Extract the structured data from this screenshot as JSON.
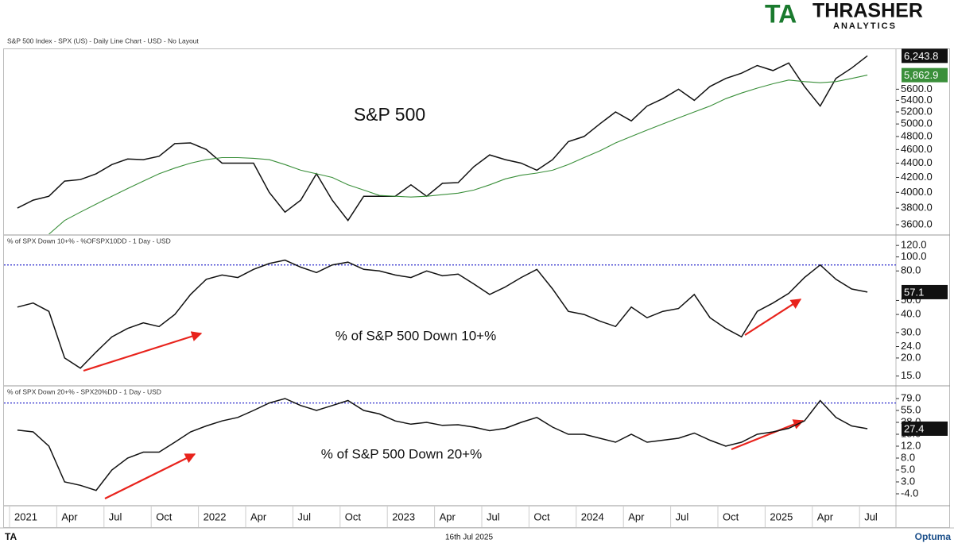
{
  "logo": {
    "mark": "TA",
    "name": "THRASHER",
    "sub": "ANALYTICS"
  },
  "footer": {
    "left": "TA",
    "date": "16th Jul 2025",
    "brand": "Optuma"
  },
  "chart_data": [
    {
      "type": "line",
      "title": "S&P 500 Index - SPX (US) - Daily Line Chart - USD - No Layout",
      "annotation": "S&P 500",
      "x": [
        "2021-01",
        "2021-02",
        "2021-03",
        "2021-04",
        "2021-05",
        "2021-06",
        "2021-07",
        "2021-08",
        "2021-09",
        "2021-10",
        "2021-11",
        "2021-12",
        "2022-01",
        "2022-02",
        "2022-03",
        "2022-04",
        "2022-05",
        "2022-06",
        "2022-07",
        "2022-08",
        "2022-09",
        "2022-10",
        "2022-11",
        "2022-12",
        "2023-01",
        "2023-02",
        "2023-03",
        "2023-04",
        "2023-05",
        "2023-06",
        "2023-07",
        "2023-08",
        "2023-09",
        "2023-10",
        "2023-11",
        "2023-12",
        "2024-01",
        "2024-02",
        "2024-03",
        "2024-04",
        "2024-05",
        "2024-06",
        "2024-07",
        "2024-08",
        "2024-09",
        "2024-10",
        "2024-11",
        "2024-12",
        "2025-01",
        "2025-02",
        "2025-03",
        "2025-04",
        "2025-05",
        "2025-06",
        "2025-07"
      ],
      "yscale": "log",
      "ylim": [
        3490,
        6380
      ],
      "yticks": [
        {
          "value": 3600,
          "label": "3600.0"
        },
        {
          "value": 3800,
          "label": "3800.0"
        },
        {
          "value": 4000,
          "label": "4000.0"
        },
        {
          "value": 4200,
          "label": "4200.0"
        },
        {
          "value": 4400,
          "label": "4400.0"
        },
        {
          "value": 4600,
          "label": "4600.0"
        },
        {
          "value": 4800,
          "label": "4800.0"
        },
        {
          "value": 5000,
          "label": "5000.0"
        },
        {
          "value": 5200,
          "label": "5200.0"
        },
        {
          "value": 5400,
          "label": "5400.0"
        },
        {
          "value": 5600,
          "label": "5600.0"
        }
      ],
      "series": [
        {
          "color": "#111111",
          "last_value_label": "6,243.8",
          "values": [
            3800,
            3900,
            3950,
            4150,
            4170,
            4250,
            4380,
            4460,
            4450,
            4500,
            4690,
            4700,
            4600,
            4400,
            4400,
            4400,
            4000,
            3750,
            3900,
            4250,
            3900,
            3650,
            3950,
            3950,
            3950,
            4100,
            3950,
            4120,
            4130,
            4350,
            4520,
            4450,
            4400,
            4300,
            4450,
            4720,
            4800,
            5000,
            5200,
            5050,
            5300,
            5430,
            5600,
            5400,
            5650,
            5800,
            5900,
            6050,
            5950,
            6100,
            5650,
            5300,
            5800,
            6000,
            6243.8
          ]
        },
        {
          "color": "#3a8f3a",
          "last_value_label": "5,862.9",
          "values": [
            null,
            null,
            3490,
            3650,
            3750,
            3850,
            3950,
            4050,
            4150,
            4250,
            4330,
            4400,
            4450,
            4480,
            4480,
            4470,
            4450,
            4380,
            4300,
            4250,
            4200,
            4100,
            4030,
            3960,
            3950,
            3940,
            3950,
            3970,
            3990,
            4030,
            4100,
            4180,
            4230,
            4260,
            4300,
            4380,
            4480,
            4580,
            4700,
            4800,
            4900,
            5000,
            5100,
            5200,
            5300,
            5430,
            5530,
            5620,
            5700,
            5770,
            5740,
            5720,
            5740,
            5800,
            5862.9
          ]
        }
      ]
    },
    {
      "type": "line",
      "title": "% of SPX Down 10+% - %OFSPX10DD - 1 Day - USD",
      "annotation": "% of S&P 500 Down 10+%",
      "x": [
        "2021-01",
        "2021-02",
        "2021-03",
        "2021-04",
        "2021-05",
        "2021-06",
        "2021-07",
        "2021-08",
        "2021-09",
        "2021-10",
        "2021-11",
        "2021-12",
        "2022-01",
        "2022-02",
        "2022-03",
        "2022-04",
        "2022-05",
        "2022-06",
        "2022-07",
        "2022-08",
        "2022-09",
        "2022-10",
        "2022-11",
        "2022-12",
        "2023-01",
        "2023-02",
        "2023-03",
        "2023-04",
        "2023-05",
        "2023-06",
        "2023-07",
        "2023-08",
        "2023-09",
        "2023-10",
        "2023-11",
        "2023-12",
        "2024-01",
        "2024-02",
        "2024-03",
        "2024-04",
        "2024-05",
        "2024-06",
        "2024-07",
        "2024-08",
        "2024-09",
        "2024-10",
        "2024-11",
        "2024-12",
        "2025-01",
        "2025-02",
        "2025-03",
        "2025-04",
        "2025-05",
        "2025-06",
        "2025-07"
      ],
      "yscale": "log",
      "ylim": [
        13,
        140
      ],
      "hline": 88,
      "yticks": [
        {
          "value": 15,
          "label": "15.0"
        },
        {
          "value": 20,
          "label": "20.0"
        },
        {
          "value": 24,
          "label": "24.0"
        },
        {
          "value": 30,
          "label": "30.0"
        },
        {
          "value": 40,
          "label": "40.0"
        },
        {
          "value": 50,
          "label": "50.0"
        },
        {
          "value": 80,
          "label": "80.0"
        },
        {
          "value": 100,
          "label": "100.0"
        },
        {
          "value": 120,
          "label": "120.0"
        }
      ],
      "series": [
        {
          "color": "#111111",
          "last_value_label": "57.1",
          "values": [
            45,
            48,
            42,
            20,
            17,
            22,
            28,
            32,
            35,
            33,
            40,
            55,
            70,
            75,
            72,
            82,
            90,
            95,
            85,
            78,
            88,
            92,
            82,
            80,
            75,
            72,
            80,
            74,
            76,
            65,
            55,
            62,
            72,
            82,
            60,
            42,
            40,
            36,
            33,
            45,
            38,
            42,
            44,
            55,
            38,
            32,
            28,
            42,
            48,
            56,
            72,
            88,
            70,
            60,
            57.1
          ]
        }
      ]
    },
    {
      "type": "line",
      "title": "% of SPX Down 20+% - SPX20%DD - 1 Day - USD",
      "annotation": "% of S&P 500 Down 20+%",
      "x": [
        "2021-01",
        "2021-02",
        "2021-03",
        "2021-04",
        "2021-05",
        "2021-06",
        "2021-07",
        "2021-08",
        "2021-09",
        "2021-10",
        "2021-11",
        "2021-12",
        "2022-01",
        "2022-02",
        "2022-03",
        "2022-04",
        "2022-05",
        "2022-06",
        "2022-07",
        "2022-08",
        "2022-09",
        "2022-10",
        "2022-11",
        "2022-12",
        "2023-01",
        "2023-02",
        "2023-03",
        "2023-04",
        "2023-05",
        "2023-06",
        "2023-07",
        "2023-08",
        "2023-09",
        "2023-10",
        "2023-11",
        "2023-12",
        "2024-01",
        "2024-02",
        "2024-03",
        "2024-04",
        "2024-05",
        "2024-06",
        "2024-07",
        "2024-08",
        "2024-09",
        "2024-10",
        "2024-11",
        "2024-12",
        "2025-01",
        "2025-02",
        "2025-03",
        "2025-04",
        "2025-05",
        "2025-06",
        "2025-07"
      ],
      "yscale": "piecewise",
      "ylim": [
        -6,
        86
      ],
      "hline": 70,
      "yticks": [
        {
          "value": -4,
          "label": "-4.0"
        },
        {
          "value": 3,
          "label": "3.0"
        },
        {
          "value": 5,
          "label": "5.0"
        },
        {
          "value": 8,
          "label": "8.0"
        },
        {
          "value": 12,
          "label": "12.0"
        },
        {
          "value": 18,
          "label": "18.0"
        },
        {
          "value": 38,
          "label": "38.0"
        },
        {
          "value": 55,
          "label": "55.0"
        },
        {
          "value": 79,
          "label": "79.0"
        }
      ],
      "xticks": [
        {
          "value": "2021-01",
          "label": "2021"
        },
        {
          "value": "2021-04",
          "label": "Apr"
        },
        {
          "value": "2021-07",
          "label": "Jul"
        },
        {
          "value": "2021-10",
          "label": "Oct"
        },
        {
          "value": "2022-01",
          "label": "2022"
        },
        {
          "value": "2022-04",
          "label": "Apr"
        },
        {
          "value": "2022-07",
          "label": "Jul"
        },
        {
          "value": "2022-10",
          "label": "Oct"
        },
        {
          "value": "2023-01",
          "label": "2023"
        },
        {
          "value": "2023-04",
          "label": "Apr"
        },
        {
          "value": "2023-07",
          "label": "Jul"
        },
        {
          "value": "2023-10",
          "label": "Oct"
        },
        {
          "value": "2024-01",
          "label": "2024"
        },
        {
          "value": "2024-04",
          "label": "Apr"
        },
        {
          "value": "2024-07",
          "label": "Jul"
        },
        {
          "value": "2024-10",
          "label": "Oct"
        },
        {
          "value": "2025-01",
          "label": "2025"
        },
        {
          "value": "2025-04",
          "label": "Apr"
        },
        {
          "value": "2025-07",
          "label": "Jul"
        }
      ],
      "series": [
        {
          "color": "#111111",
          "last_value_label": "27.4",
          "values": [
            25,
            22,
            12,
            3,
            1,
            -2,
            5,
            8,
            10,
            10,
            14,
            22,
            32,
            40,
            45,
            55,
            70,
            79,
            65,
            55,
            65,
            75,
            55,
            50,
            40,
            35,
            38,
            33,
            34,
            30,
            24,
            28,
            38,
            45,
            30,
            18,
            18,
            16,
            14,
            18,
            14,
            15,
            16,
            20,
            15,
            12,
            14,
            18,
            22,
            28,
            40,
            75,
            45,
            32,
            27.4
          ]
        }
      ]
    }
  ]
}
